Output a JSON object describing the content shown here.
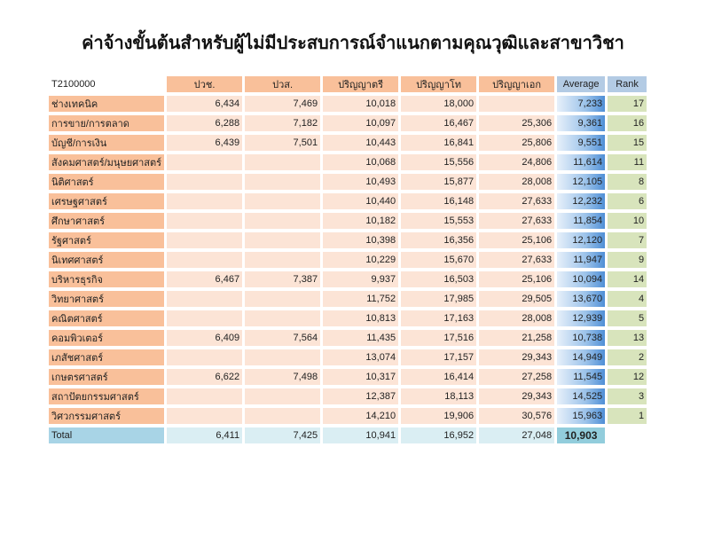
{
  "title": "ค่าจ้างขั้นต้นสำหรับผู้ไม่มีประสบการณ์จำแนกตามคุณวุฒิและสาขาวิชา",
  "table": {
    "code": "T2100000",
    "headers": [
      "ปวช.",
      "ปวส.",
      "ปริญญาตรี",
      "ปริญญาโท",
      "ปริญญาเอก",
      "Average",
      "Rank"
    ],
    "rows": [
      {
        "label": "ช่างเทคนิค",
        "vals": [
          "6,434",
          "7,469",
          "10,018",
          "18,000",
          ""
        ],
        "avg": "7,233",
        "rank": "17"
      },
      {
        "label": "การขาย/การตลาด",
        "vals": [
          "6,288",
          "7,182",
          "10,097",
          "16,467",
          "25,306"
        ],
        "avg": "9,361",
        "rank": "16"
      },
      {
        "label": "บัญชี/การเงิน",
        "vals": [
          "6,439",
          "7,501",
          "10,443",
          "16,841",
          "25,806"
        ],
        "avg": "9,551",
        "rank": "15"
      },
      {
        "label": "สังคมศาสตร์/มนุษยศาสตร์",
        "vals": [
          "",
          "",
          "10,068",
          "15,556",
          "24,806"
        ],
        "avg": "11,614",
        "rank": "11"
      },
      {
        "label": "นิติศาสตร์",
        "vals": [
          "",
          "",
          "10,493",
          "15,877",
          "28,008"
        ],
        "avg": "12,105",
        "rank": "8"
      },
      {
        "label": "เศรษฐศาสตร์",
        "vals": [
          "",
          "",
          "10,440",
          "16,148",
          "27,633"
        ],
        "avg": "12,232",
        "rank": "6"
      },
      {
        "label": "ศึกษาศาสตร์",
        "vals": [
          "",
          "",
          "10,182",
          "15,553",
          "27,633"
        ],
        "avg": "11,854",
        "rank": "10"
      },
      {
        "label": "รัฐศาสตร์",
        "vals": [
          "",
          "",
          "10,398",
          "16,356",
          "25,106"
        ],
        "avg": "12,120",
        "rank": "7"
      },
      {
        "label": "นิเทศศาสตร์",
        "vals": [
          "",
          "",
          "10,229",
          "15,670",
          "27,633"
        ],
        "avg": "11,947",
        "rank": "9"
      },
      {
        "label": "บริหารธุรกิจ",
        "vals": [
          "6,467",
          "7,387",
          "9,937",
          "16,503",
          "25,106"
        ],
        "avg": "10,094",
        "rank": "14"
      },
      {
        "label": "วิทยาศาสตร์",
        "vals": [
          "",
          "",
          "11,752",
          "17,985",
          "29,505"
        ],
        "avg": "13,670",
        "rank": "4"
      },
      {
        "label": "คณิตศาสตร์",
        "vals": [
          "",
          "",
          "10,813",
          "17,163",
          "28,008"
        ],
        "avg": "12,939",
        "rank": "5"
      },
      {
        "label": "คอมพิวเตอร์",
        "vals": [
          "6,409",
          "7,564",
          "11,435",
          "17,516",
          "21,258"
        ],
        "avg": "10,738",
        "rank": "13"
      },
      {
        "label": "เภสัชศาสตร์",
        "vals": [
          "",
          "",
          "13,074",
          "17,157",
          "29,343"
        ],
        "avg": "14,949",
        "rank": "2"
      },
      {
        "label": "เกษตรศาสตร์",
        "vals": [
          "6,622",
          "7,498",
          "10,317",
          "16,414",
          "27,258"
        ],
        "avg": "11,545",
        "rank": "12"
      },
      {
        "label": "สถาปัตยกรรมศาสตร์",
        "vals": [
          "",
          "",
          "12,387",
          "18,113",
          "29,343"
        ],
        "avg": "14,525",
        "rank": "3"
      },
      {
        "label": "วิศวกรรมศาสตร์",
        "vals": [
          "",
          "",
          "14,210",
          "19,906",
          "30,576"
        ],
        "avg": "15,963",
        "rank": "1"
      }
    ],
    "total": {
      "label": "Total",
      "vals": [
        "6,411",
        "7,425",
        "10,941",
        "16,952",
        "27,048"
      ],
      "avg": "10,903"
    }
  }
}
